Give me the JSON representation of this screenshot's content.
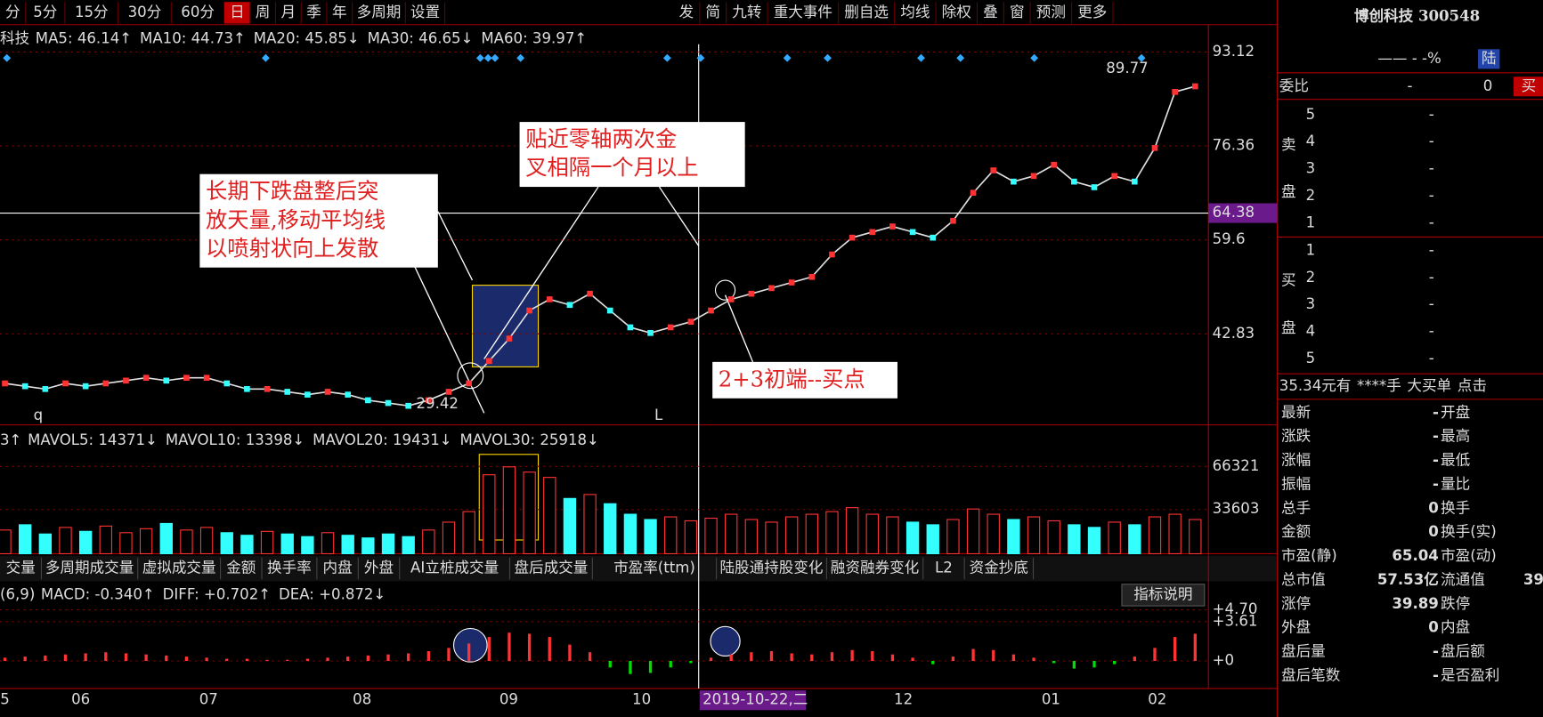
{
  "toolbar": {
    "left": [
      "分",
      "5分",
      "15分",
      "30分",
      "60分",
      "日",
      "周",
      "月",
      "季",
      "年",
      "多周期",
      "设置"
    ],
    "right": [
      "发",
      "简",
      "九转",
      "重大事件",
      "删自选",
      "均线",
      "除权",
      "叠",
      "窗",
      "预测",
      "更多"
    ]
  },
  "price_panel": {
    "stock_label": "科技",
    "ma": [
      {
        "text": "MA5: 46.14↑",
        "color": "#ffffff"
      },
      {
        "text": "MA10: 44.73↑",
        "color": "#ffff00"
      },
      {
        "text": "MA20: 45.85↓",
        "color": "#ff55ff"
      },
      {
        "text": "MA30: 46.65↓",
        "color": "#00dd00"
      },
      {
        "text": "MA60: 39.97↑",
        "color": "#00ccff"
      }
    ],
    "ylim": [
      26.6,
      94.5
    ],
    "yticks": [
      93.12,
      76.36,
      59.6,
      42.83
    ],
    "crosshair": 64.38,
    "high_label": "89.77",
    "low_label": "29.42",
    "markers": [
      "q",
      "L"
    ],
    "close": [
      34,
      33.5,
      33,
      34,
      33.5,
      34,
      34.5,
      35,
      34.5,
      35,
      35,
      34,
      33,
      33,
      32.5,
      32,
      32.5,
      32,
      31,
      30.5,
      30,
      31,
      32.5,
      34,
      38,
      42,
      47,
      49,
      48,
      50,
      47,
      44,
      43,
      44,
      45,
      47,
      49,
      50,
      51,
      52,
      53,
      57,
      60,
      61,
      62,
      61,
      60,
      63,
      68,
      72,
      70,
      71,
      73,
      70,
      69,
      71,
      70,
      76,
      86,
      87
    ],
    "annotations": [
      {
        "lines": [
          "长期下跌盘整后突",
          "放天量,移动平均线",
          "以喷射状向上发散"
        ]
      },
      {
        "lines": [
          "贴近零轴两次金",
          "叉相隔一个月以上"
        ]
      },
      {
        "lines": [
          "2+3初端--买点"
        ]
      }
    ]
  },
  "volume_panel": {
    "prefix": "3↑",
    "mavol": [
      {
        "text": "MAVOL5: 14371↓",
        "color": "#ffff00"
      },
      {
        "text": "MAVOL10: 13398↓",
        "color": "#ffffff"
      },
      {
        "text": "MAVOL20: 19431↓",
        "color": "#4444ff"
      },
      {
        "text": "MAVOL30: 25918↓",
        "color": "#00ccff"
      }
    ],
    "ylim": [
      0,
      80700
    ],
    "yticks": [
      66321,
      33603
    ],
    "values": [
      18000,
      22000,
      15000,
      20000,
      17000,
      21000,
      16000,
      19000,
      23000,
      18000,
      20000,
      16000,
      14000,
      17000,
      15000,
      13000,
      16000,
      14000,
      12000,
      15000,
      13000,
      18000,
      24000,
      32000,
      60000,
      66000,
      62000,
      58000,
      42000,
      45000,
      38000,
      30000,
      26000,
      28000,
      25000,
      27000,
      30000,
      26000,
      24000,
      28000,
      30000,
      32000,
      35000,
      30000,
      28000,
      24000,
      22000,
      26000,
      34000,
      30000,
      26000,
      28000,
      25000,
      22000,
      20000,
      24000,
      22000,
      28000,
      30000,
      26000
    ]
  },
  "indicator_tabs": [
    "交量",
    "多周期成交量",
    "虚拟成交量",
    "金额",
    "换手率",
    "内盘",
    "外盘",
    "AI立桩成交量",
    "盘后成交量",
    "市盈率(ttm)",
    "陆股通持股变化",
    "融资融券变化",
    "L2",
    "资金抄底"
  ],
  "macd_panel": {
    "params": "(6,9)",
    "items": [
      {
        "text": "MACD: -0.340↑",
        "color": "#00dd00"
      },
      {
        "text": "DIFF: +0.702↑",
        "color": "#ffffff"
      },
      {
        "text": "DEA: +0.872↓",
        "color": "#ffff00"
      }
    ],
    "help": "指标说明",
    "ylim": [
      -2.53,
      6.69
    ],
    "yticks": [
      {
        "value": 4.7,
        "label": "+4.70"
      },
      {
        "value": 3.61,
        "label": "+3.61"
      },
      {
        "value": 0,
        "label": "+0"
      }
    ],
    "hist": [
      0.3,
      0.4,
      0.5,
      0.6,
      0.7,
      0.8,
      0.7,
      0.6,
      0.5,
      0.4,
      0.3,
      0.2,
      0.2,
      0.1,
      0.1,
      0.2,
      0.3,
      0.4,
      0.5,
      0.6,
      0.7,
      0.9,
      1.2,
      1.6,
      2.2,
      2.6,
      2.5,
      2.2,
      1.5,
      0.8,
      -0.6,
      -1.2,
      -1.1,
      -0.6,
      -0.2,
      0.3,
      0.6,
      0.8,
      0.9,
      0.7,
      0.6,
      0.8,
      1.0,
      0.9,
      0.6,
      0.3,
      -0.3,
      0.4,
      1.1,
      1.0,
      0.6,
      0.3,
      -0.2,
      -0.7,
      -0.6,
      -0.3,
      0.4,
      1.2,
      2.2,
      2.5
    ]
  },
  "x_axis": {
    "months": [
      "5",
      "06",
      "07",
      "08",
      "09",
      "10",
      "12",
      "01",
      "02"
    ],
    "crosshair_date": "2019-10-22,二"
  },
  "quote": {
    "title": "博创科技 300548",
    "sub": "—— - -%",
    "sub_tag": "陆",
    "weibi": [
      "委比",
      "-",
      "0",
      "买"
    ],
    "sell_label": [
      "卖",
      "盘"
    ],
    "sell": [
      [
        "5",
        "-"
      ],
      [
        "4",
        "-"
      ],
      [
        "3",
        "-"
      ],
      [
        "2",
        "-"
      ],
      [
        "1",
        "-"
      ]
    ],
    "buy_label": [
      "买",
      "盘"
    ],
    "buy": [
      [
        "1",
        "-"
      ],
      [
        "2",
        "-"
      ],
      [
        "3",
        "-"
      ],
      [
        "4",
        "-"
      ],
      [
        "5",
        "-"
      ]
    ],
    "info": [
      "35.34元有",
      "****手",
      "大买单",
      "点击"
    ],
    "stats": [
      [
        "最新",
        "-",
        "开盘"
      ],
      [
        "涨跌",
        "-",
        "最高"
      ],
      [
        "涨幅",
        "-",
        "最低"
      ],
      [
        "振幅",
        "-",
        "量比"
      ],
      [
        "总手",
        "0",
        "换手"
      ],
      [
        "金额",
        "0",
        "换手(实)"
      ],
      [
        "市盈(静)",
        "65.04",
        "市盈(动)"
      ],
      [
        "总市值",
        "57.53亿",
        "流通值",
        "39"
      ],
      [
        "涨停",
        "39.89",
        "跌停"
      ],
      [
        "外盘",
        "0",
        "内盘"
      ],
      [
        "盘后量",
        "-",
        "盘后额"
      ],
      [
        "盘后笔数",
        "-",
        "是否盈利"
      ]
    ]
  }
}
